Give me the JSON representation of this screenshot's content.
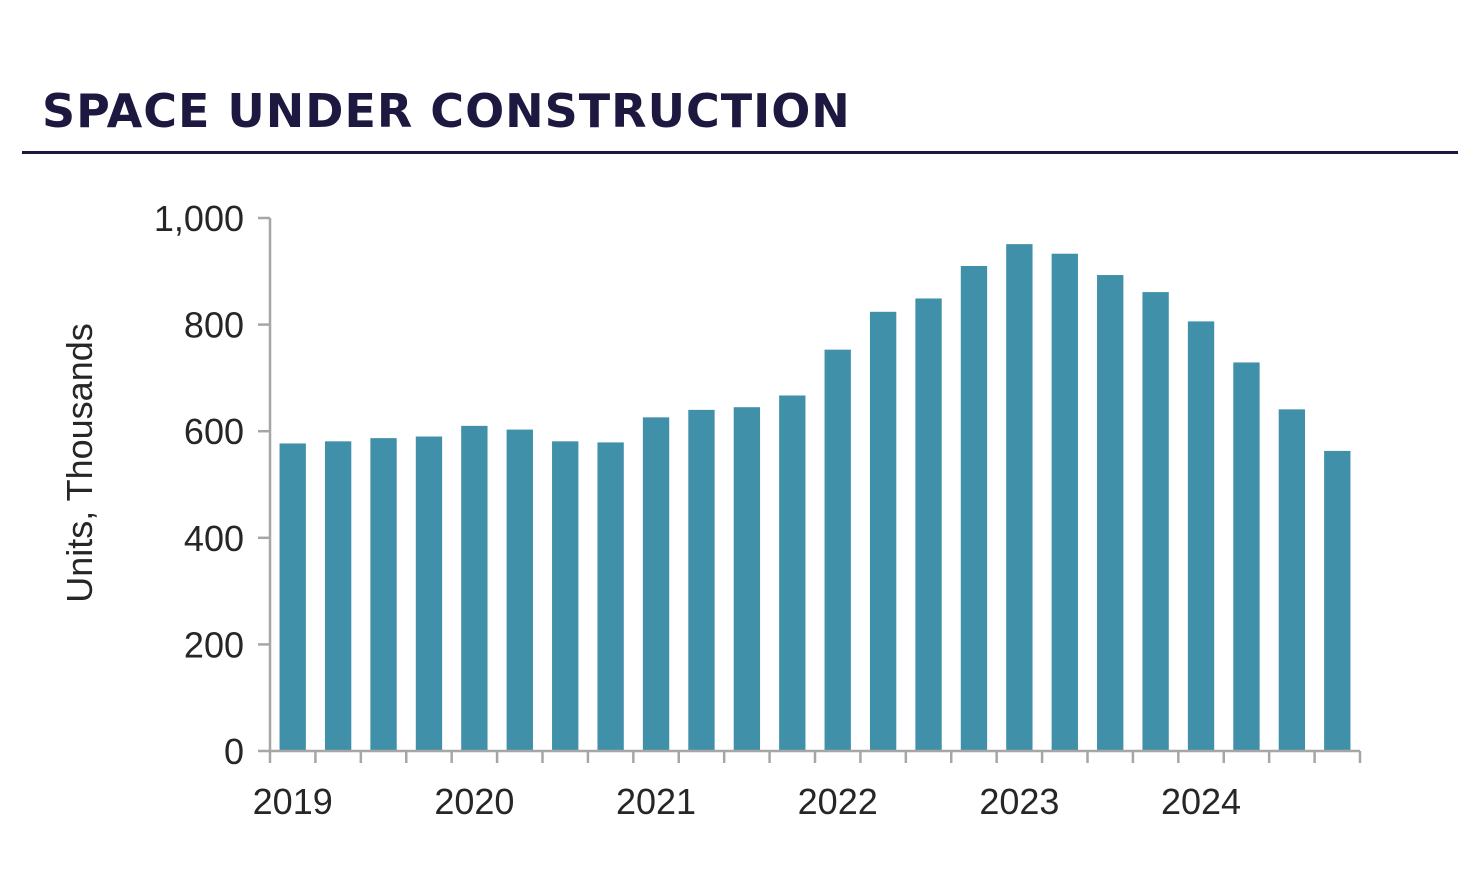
{
  "header": {
    "title": "SPACE UNDER CONSTRUCTION"
  },
  "chart_data": {
    "type": "bar",
    "title": "SPACE UNDER CONSTRUCTION",
    "ylabel": "Units, Thousands",
    "xlabel": "",
    "ylim": [
      0,
      1000
    ],
    "yticks": [
      0,
      200,
      400,
      600,
      800,
      1000
    ],
    "ytick_labels": [
      "0",
      "200",
      "400",
      "600",
      "800",
      "1,000"
    ],
    "xtick_labels": [
      "2019",
      "2020",
      "2021",
      "2022",
      "2023",
      "2024"
    ],
    "categories": [
      "2019 Q1",
      "2019 Q2",
      "2019 Q3",
      "2019 Q4",
      "2020 Q1",
      "2020 Q2",
      "2020 Q3",
      "2020 Q4",
      "2021 Q1",
      "2021 Q2",
      "2021 Q3",
      "2021 Q4",
      "2022 Q1",
      "2022 Q2",
      "2022 Q3",
      "2022 Q4",
      "2023 Q1",
      "2023 Q2",
      "2023 Q3",
      "2023 Q4",
      "2024 Q1",
      "2024 Q2",
      "2024 Q3",
      "2024 Q4"
    ],
    "values": [
      577,
      581,
      587,
      590,
      610,
      603,
      581,
      579,
      626,
      640,
      645,
      667,
      753,
      824,
      849,
      910,
      951,
      933,
      893,
      861,
      806,
      729,
      641,
      563
    ],
    "bar_color": "#4190a9",
    "grid": false,
    "legend": "none"
  }
}
